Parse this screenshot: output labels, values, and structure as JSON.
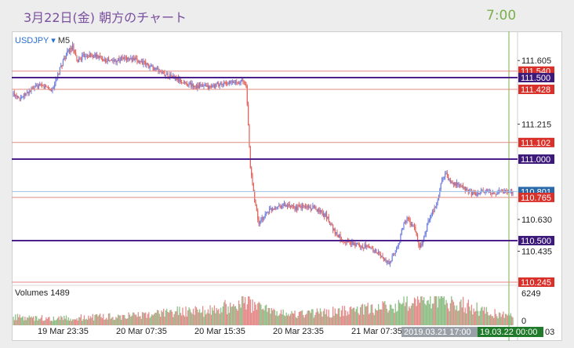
{
  "header": {
    "title": "3月22日(金) 朝方のチャート",
    "time": "7:00"
  },
  "chart": {
    "symbol": "USDJPY",
    "dropdown_glyph": "▾",
    "timeframe": "M5",
    "volume_label": "Volumes 1489",
    "volume_scale_top": "6249",
    "volume_scale_bottom": "0",
    "crosshair_time_label": "2019.03.21 17:00",
    "last_time_label": "19.03.22 00:00",
    "last_time_label_suffix": "03",
    "colors": {
      "candle_up": "#6f7fe0",
      "candle_down": "#e2635c",
      "volume_up": "#8fbf86",
      "volume_down": "#e58a8a",
      "purple_line": "#4b1f8c",
      "red_line": "#e08a80",
      "red_tag": "#d9302a",
      "purple_tag": "#3d1a7a",
      "blue_tag": "#2b6aaa",
      "green_tag": "#1f7a2a",
      "grey_tag": "#9aa0a8",
      "vline": "#7ab04a"
    }
  },
  "chart_data": {
    "type": "candlestick",
    "instrument": "USDJPY",
    "timeframe": "M5",
    "x_ticks": [
      "19 Mar 23:35",
      "20 Mar 07:35",
      "20 Mar 15:35",
      "20 Mar 23:35",
      "21 Mar 07:35"
    ],
    "y_ticks": [
      "111.605",
      "111.215",
      "110.630",
      "110.435"
    ],
    "price_range": [
      110.245,
      111.76
    ],
    "horizontal_levels": [
      {
        "price": 111.54,
        "label": "111.540",
        "kind": "red"
      },
      {
        "price": 111.5,
        "label": "111.500",
        "kind": "purple"
      },
      {
        "price": 111.428,
        "label": "111.428",
        "kind": "red"
      },
      {
        "price": 111.102,
        "label": "111.102",
        "kind": "red"
      },
      {
        "price": 111.0,
        "label": "111.000",
        "kind": "purple"
      },
      {
        "price": 110.801,
        "label": "110.801",
        "kind": "blue"
      },
      {
        "price": 110.765,
        "label": "110.765",
        "kind": "red"
      },
      {
        "price": 110.5,
        "label": "110.500",
        "kind": "purple"
      },
      {
        "price": 110.245,
        "label": "110.245",
        "kind": "red"
      }
    ],
    "price_path": [
      [
        0,
        111.4
      ],
      [
        2,
        111.38
      ],
      [
        4,
        111.42
      ],
      [
        6,
        111.45
      ],
      [
        8,
        111.44
      ],
      [
        9,
        111.42
      ],
      [
        10,
        111.48
      ],
      [
        11,
        111.55
      ],
      [
        12,
        111.62
      ],
      [
        13,
        111.66
      ],
      [
        14,
        111.69
      ],
      [
        15,
        111.6
      ],
      [
        17,
        111.64
      ],
      [
        20,
        111.63
      ],
      [
        23,
        111.6
      ],
      [
        26,
        111.62
      ],
      [
        30,
        111.6
      ],
      [
        33,
        111.56
      ],
      [
        36,
        111.52
      ],
      [
        38,
        111.5
      ],
      [
        40,
        111.47
      ],
      [
        43,
        111.45
      ],
      [
        46,
        111.44
      ],
      [
        49,
        111.46
      ],
      [
        52,
        111.47
      ],
      [
        54,
        111.48
      ],
      [
        55,
        111.46
      ],
      [
        55.5,
        111.2
      ],
      [
        56,
        110.95
      ],
      [
        57,
        110.75
      ],
      [
        58,
        110.6
      ],
      [
        60,
        110.68
      ],
      [
        62,
        110.71
      ],
      [
        64,
        110.72
      ],
      [
        66,
        110.7
      ],
      [
        69,
        110.71
      ],
      [
        72,
        110.69
      ],
      [
        74,
        110.65
      ],
      [
        76,
        110.55
      ],
      [
        78,
        110.5
      ],
      [
        80,
        110.48
      ],
      [
        82,
        110.47
      ],
      [
        84,
        110.46
      ],
      [
        86,
        110.43
      ],
      [
        88,
        110.37
      ],
      [
        89,
        110.36
      ],
      [
        90,
        110.42
      ],
      [
        91,
        110.48
      ],
      [
        92,
        110.58
      ],
      [
        93,
        110.64
      ],
      [
        95,
        110.56
      ],
      [
        96,
        110.45
      ],
      [
        97,
        110.52
      ],
      [
        98,
        110.62
      ],
      [
        100,
        110.72
      ],
      [
        101,
        110.85
      ],
      [
        102,
        110.92
      ],
      [
        103,
        110.87
      ],
      [
        105,
        110.84
      ],
      [
        107,
        110.81
      ],
      [
        109,
        110.78
      ],
      [
        111,
        110.8
      ],
      [
        113,
        110.79
      ],
      [
        115,
        110.8
      ],
      [
        118,
        110.8
      ]
    ],
    "volume_profile": [
      [
        0,
        0.3
      ],
      [
        10,
        0.25
      ],
      [
        20,
        0.3
      ],
      [
        30,
        0.35
      ],
      [
        40,
        0.5
      ],
      [
        48,
        0.55
      ],
      [
        52,
        0.75
      ],
      [
        55,
        0.85
      ],
      [
        58,
        0.6
      ],
      [
        62,
        0.45
      ],
      [
        68,
        0.4
      ],
      [
        74,
        0.45
      ],
      [
        80,
        0.55
      ],
      [
        86,
        0.6
      ],
      [
        90,
        0.65
      ],
      [
        94,
        0.85
      ],
      [
        100,
        0.9
      ],
      [
        106,
        0.75
      ],
      [
        112,
        0.5
      ],
      [
        118,
        0.3
      ]
    ]
  }
}
